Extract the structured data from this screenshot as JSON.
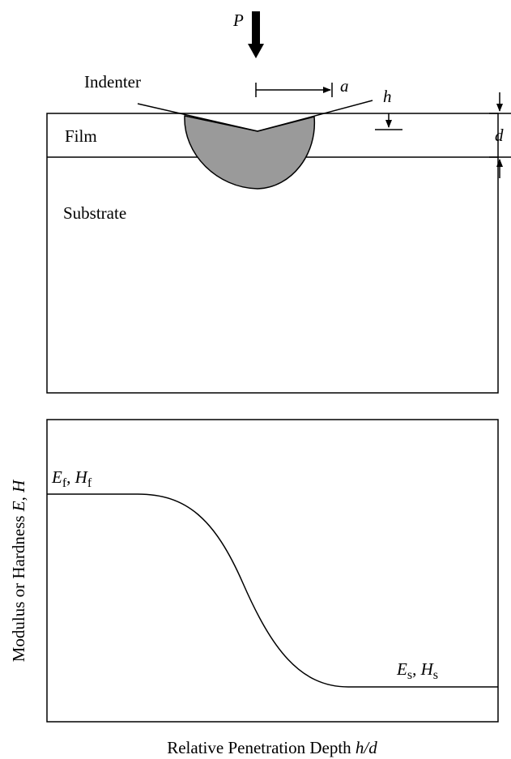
{
  "indenter_diagram": {
    "load": "P",
    "indenter": "Indenter",
    "contact_radius": "a",
    "depth": "h",
    "thickness": "d",
    "film": "Film",
    "substrate": "Substrate"
  },
  "profile_plot": {
    "y_axis": [
      "Modulus or Hardness ",
      "E, H"
    ],
    "x_axis": [
      "Relative Penetration Depth ",
      "h/d"
    ],
    "film_label": [
      "E",
      "f",
      ", ",
      "H",
      "f"
    ],
    "substrate_label": [
      "E",
      "s",
      ", ",
      "H",
      "s"
    ]
  }
}
